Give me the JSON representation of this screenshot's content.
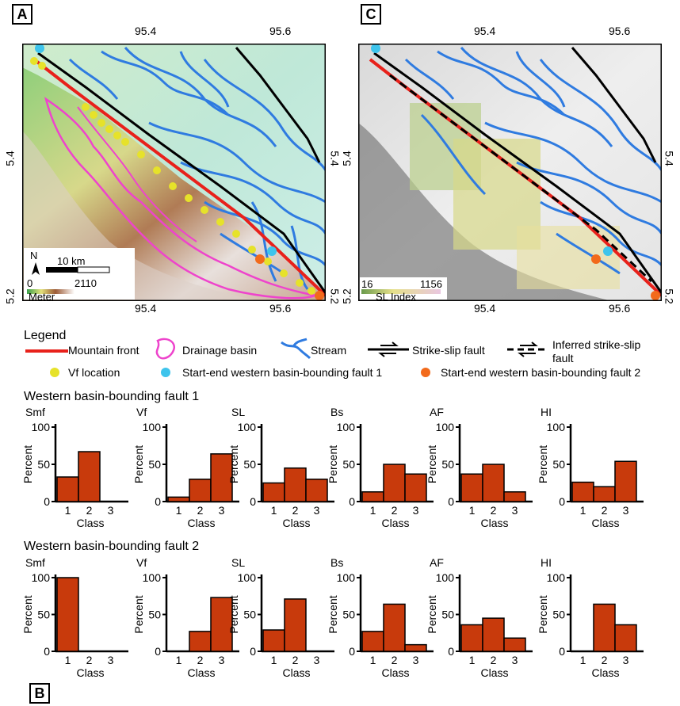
{
  "panels": {
    "a": "A",
    "b": "B",
    "c": "C"
  },
  "map_a": {
    "lon_ticks": [
      "95.4",
      "95.6"
    ],
    "lat_ticks": [
      "5.4",
      "5.2"
    ],
    "north": "N",
    "scale_label": "10 km",
    "elev_min": "0",
    "elev_max": "2110",
    "elev_unit": "Meter"
  },
  "map_c": {
    "lon_ticks": [
      "95.4",
      "95.6"
    ],
    "lat_ticks": [
      "5.4",
      "5.2"
    ],
    "sl_min": "16",
    "sl_max": "1156",
    "sl_label": "SL Index"
  },
  "legend": {
    "title": "Legend",
    "mountain_front": "Mountain front",
    "drainage_basin": "Drainage basin",
    "stream": "Stream",
    "strike_slip": "Strike-slip fault",
    "inferred_1": "Inferred strike-slip",
    "inferred_2": "fault",
    "vf_location": "Vf location",
    "start_end_1": "Start-end western basin-bounding fault 1",
    "start_end_2": "Start-end western basin-bounding fault 2"
  },
  "colors": {
    "bar": "#c83a0c",
    "mountain_front": "#e8211b",
    "basin": "#ee44cc",
    "stream": "#2f7be0",
    "vf": "#e6e22a",
    "fault1_point": "#3ec4ec",
    "fault2_point": "#f26a1b"
  },
  "chart_data": [
    {
      "group": "Western basin-bounding fault 1",
      "type": "bar",
      "xlabel": "Class",
      "ylabel": "Percent",
      "ylim": [
        0,
        100
      ],
      "yticks": [
        "0",
        "50",
        "100"
      ],
      "categories": [
        "1",
        "2",
        "3"
      ],
      "charts": [
        {
          "title": "Smf",
          "values": [
            33,
            67,
            0
          ]
        },
        {
          "title": "Vf",
          "values": [
            6,
            30,
            64
          ]
        },
        {
          "title": "SL",
          "values": [
            25,
            45,
            30
          ]
        },
        {
          "title": "Bs",
          "values": [
            13,
            50,
            37
          ]
        },
        {
          "title": "AF",
          "values": [
            37,
            50,
            13
          ]
        },
        {
          "title": "HI",
          "values": [
            26,
            20,
            54
          ]
        }
      ]
    },
    {
      "group": "Western basin-bounding fault 2",
      "type": "bar",
      "xlabel": "Class",
      "ylabel": "Percent",
      "ylim": [
        0,
        100
      ],
      "yticks": [
        "0",
        "50",
        "100"
      ],
      "categories": [
        "1",
        "2",
        "3"
      ],
      "charts": [
        {
          "title": "Smf",
          "values": [
            100,
            0,
            0
          ]
        },
        {
          "title": "Vf",
          "values": [
            0,
            27,
            73
          ]
        },
        {
          "title": "SL",
          "values": [
            29,
            71,
            0
          ]
        },
        {
          "title": "Bs",
          "values": [
            27,
            64,
            9
          ]
        },
        {
          "title": "AF",
          "values": [
            36,
            45,
            18
          ]
        },
        {
          "title": "HI",
          "values": [
            0,
            64,
            36
          ]
        }
      ]
    }
  ]
}
